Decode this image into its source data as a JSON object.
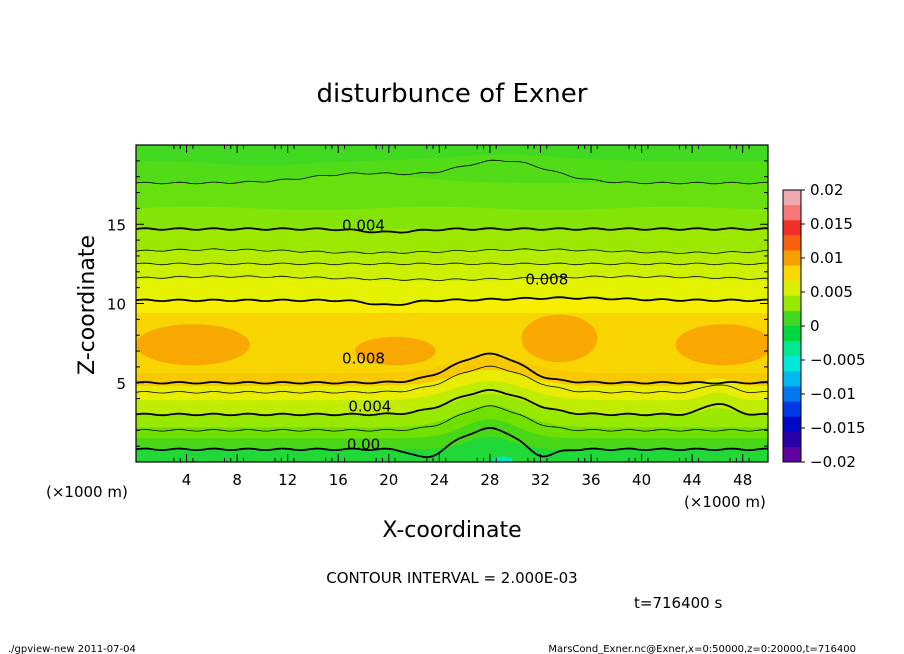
{
  "chart_data": {
    "type": "heatmap",
    "title": "disturbunce of Exner",
    "xlabel": "X-coordinate",
    "ylabel": "Z-coordinate",
    "x_unit_left": "(×1000 m)",
    "x_unit_right": "(×1000 m)",
    "xlim": [
      0,
      50
    ],
    "ylim": [
      0,
      20
    ],
    "x_ticks": [
      4,
      8,
      12,
      16,
      20,
      24,
      28,
      32,
      36,
      40,
      44,
      48
    ],
    "x_tick_labels": [
      "4",
      "8",
      "12",
      "16",
      "20",
      "24",
      "28",
      "32",
      "36",
      "40",
      "44",
      "48"
    ],
    "y_ticks": [
      5,
      10,
      15
    ],
    "y_tick_labels": [
      "5",
      "10",
      "15"
    ],
    "contour_interval_text": "CONTOUR INTERVAL = 2.000E-03",
    "time_text": "t=716400 s",
    "contour_labels": [
      {
        "text": "0.004",
        "x": 18.0,
        "z": 14.6
      },
      {
        "text": "0.008",
        "x": 32.5,
        "z": 11.2
      },
      {
        "text": "0.008",
        "x": 18.0,
        "z": 6.2
      },
      {
        "text": "0.004",
        "x": 18.5,
        "z": 3.2
      },
      {
        "text": "0.00",
        "x": 18.0,
        "z": 0.8
      }
    ],
    "colorbar": {
      "range": [
        -0.02,
        0.02
      ],
      "labels": [
        "0.02",
        "0.015",
        "0.01",
        "0.005",
        "0",
        "−0.005",
        "−0.01",
        "−0.015",
        "−0.02"
      ],
      "colors": [
        "#f0a8b0",
        "#f87878",
        "#f03028",
        "#f86010",
        "#f8a000",
        "#f8d800",
        "#d8f000",
        "#98e800",
        "#40d820",
        "#00d840",
        "#00e890",
        "#00e8d8",
        "#00b8f0",
        "#0078f0",
        "#0038e8",
        "#0008c8",
        "#2800a8",
        "#6000a0"
      ]
    }
  },
  "footer": {
    "left": "./gpview-new   2011-07-04",
    "right": "MarsCond_Exner.nc@Exner,x=0:50000,z=0:20000,t=716400"
  }
}
